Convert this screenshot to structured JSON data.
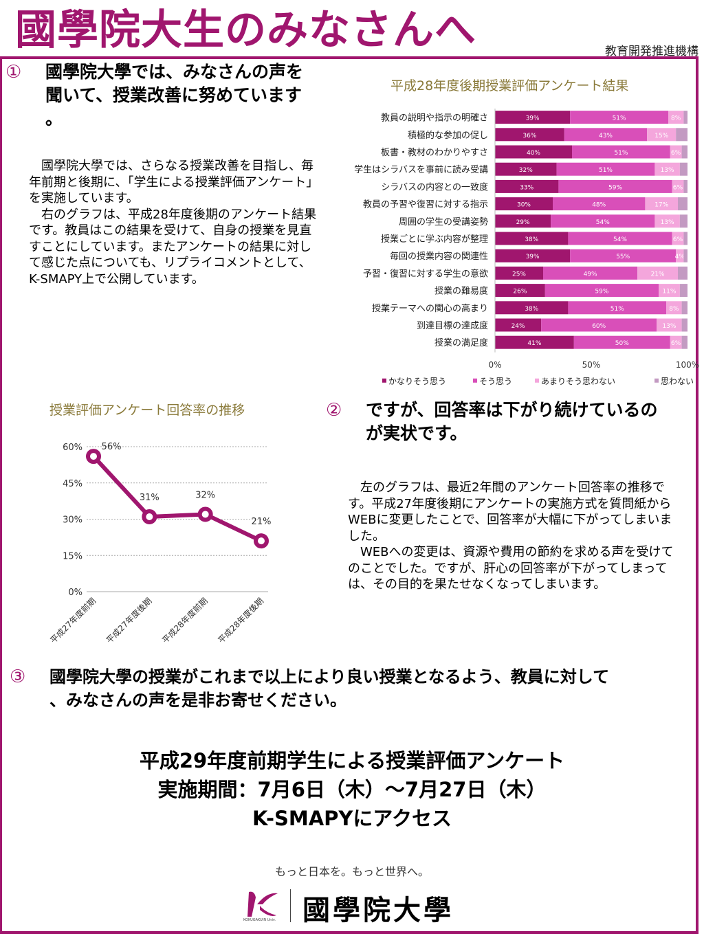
{
  "header": {
    "title": "國學院大生のみなさんへ",
    "organization": "教育開発推進機構"
  },
  "section1": {
    "number": "①",
    "heading": [
      "國學院大學では、みなさんの声を",
      "聞いて、授業改善に努めています",
      "。"
    ],
    "body": [
      "　國學院大學では、さらなる授業改善を目指し、毎年前期と後期に、「学生による授業評価アンケート」を実施しています。",
      "　右のグラフは、平成28年度後期のアンケート結果です。教員はこの結果を受けて、自身の授業を見直すことにしています。またアンケートの結果に対して感じた点についても、リプライコメントとして、K-SMAPY上で公開しています。"
    ]
  },
  "section2": {
    "number": "②",
    "heading": [
      "ですが、回答率は下がり続けているの",
      "が実状です。"
    ],
    "body": [
      "　左のグラフは、最近2年間のアンケート回答率の推移です。平成27年度後期にアンケートの実施方式を質問紙からWEBに変更したことで、回答率が大幅に下がってしまいました。",
      "　WEBへの変更は、資源や費用の節約を求める声を受けてのことでした。ですが、肝心の回答率が下がってしまっては、その目的を果たせなくなってしまいます。"
    ]
  },
  "section3": {
    "number": "③",
    "heading": [
      "國學院大學の授業がこれまで以上により良い授業となるよう、教員に対して",
      "、みなさんの声を是非お寄せください。"
    ]
  },
  "announcement": {
    "line1": "平成29年度前期学生による授業評価アンケート",
    "line2": "実施期間：7月6日（木）～7月27日（木）",
    "line3": "K-SMAPYにアクセス"
  },
  "footer": {
    "slogan": "もっと日本を。もっと世界へ。",
    "logo_text": "國學院大學",
    "logo_sub": "KOKUGAKUIN Univ."
  },
  "colors": {
    "brand": "#a0166e",
    "series": [
      "#a0166e",
      "#d94fb9",
      "#f4a6dc",
      "#c39ac2"
    ],
    "chart_title": "#8a7a3a"
  },
  "chart_data": [
    {
      "type": "bar",
      "orientation": "horizontal",
      "stacked": true,
      "title": "平成28年度後期授業評価アンケート結果",
      "categories": [
        "教員の説明や指示の明確さ",
        "積極的な参加の促し",
        "板書・教材のわかりやすさ",
        "学生はシラバスを事前に読み受講",
        "シラバスの内容との一致度",
        "教員の予習や復習に対する指示",
        "周囲の学生の受講姿勢",
        "授業ごとに学ぶ内容が整理",
        "毎回の授業内容の関連性",
        "予習・復習に対する学生の意欲",
        "授業の難易度",
        "授業テーマへの関心の高まり",
        "到達目標の達成度",
        "授業の満足度"
      ],
      "series": [
        {
          "name": "かなりそう思う",
          "values": [
            39,
            36,
            40,
            32,
            33,
            30,
            29,
            38,
            39,
            25,
            26,
            38,
            24,
            41
          ]
        },
        {
          "name": "そう思う",
          "values": [
            51,
            43,
            51,
            51,
            59,
            48,
            54,
            54,
            55,
            49,
            59,
            51,
            60,
            50
          ]
        },
        {
          "name": "あまりそう思わない",
          "values": [
            8,
            15,
            6,
            13,
            6,
            17,
            13,
            6,
            4,
            21,
            11,
            8,
            13,
            6
          ]
        },
        {
          "name": "思わない",
          "values": [
            2,
            6,
            3,
            4,
            2,
            5,
            4,
            2,
            2,
            5,
            4,
            3,
            3,
            3
          ]
        }
      ],
      "labels": [
        [
          "39%",
          "51%",
          "8%",
          ""
        ],
        [
          "36%",
          "43%",
          "15%",
          ""
        ],
        [
          "40%",
          "51%",
          "6%",
          ""
        ],
        [
          "32%",
          "51%",
          "13%",
          ""
        ],
        [
          "33%",
          "59%",
          "6%",
          ""
        ],
        [
          "30%",
          "48%",
          "17%",
          ""
        ],
        [
          "29%",
          "54%",
          "13%",
          ""
        ],
        [
          "38%",
          "54%",
          "6%",
          ""
        ],
        [
          "39%",
          "55%",
          "4%",
          ""
        ],
        [
          "25%",
          "49%",
          "21%",
          ""
        ],
        [
          "26%",
          "59%",
          "11%",
          ""
        ],
        [
          "38%",
          "51%",
          "8%",
          ""
        ],
        [
          "24%",
          "60%",
          "13%",
          ""
        ],
        [
          "41%",
          "50%",
          "6%",
          ""
        ]
      ],
      "xticks": [
        "0%",
        "50%",
        "100%"
      ],
      "xlim": [
        0,
        100
      ],
      "grid": false,
      "legend": "bottom"
    },
    {
      "type": "line",
      "title": "授業評価アンケート回答率の推移",
      "categories": [
        "平成27年度前期",
        "平成27年度後期",
        "平成28年度前期",
        "平成28年度後期"
      ],
      "values": [
        56,
        31,
        32,
        21
      ],
      "labels": [
        "56%",
        "31%",
        "32%",
        "21%"
      ],
      "yticks": [
        "0%",
        "15%",
        "30%",
        "45%",
        "60%"
      ],
      "ylim": [
        0,
        60
      ],
      "grid": true,
      "legend": "none"
    }
  ]
}
